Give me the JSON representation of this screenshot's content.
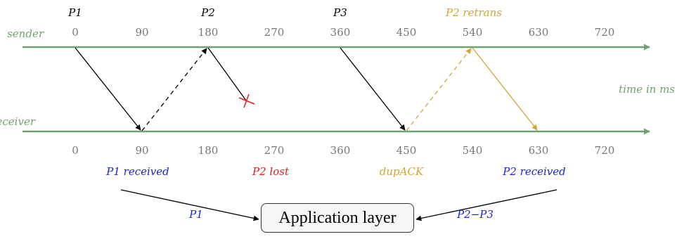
{
  "colors": {
    "timeline": "#6fa26c",
    "black": "#000000",
    "gold": "#d4a534",
    "red": "#e51c24",
    "blue": "#1a23d6"
  },
  "sender_label": "sender",
  "receiver_label": "receiver",
  "axis_unit_label": "time in ms",
  "ticks": [
    "0",
    "90",
    "180",
    "270",
    "360",
    "450",
    "540",
    "630",
    "720"
  ],
  "packet_labels": [
    {
      "text": "P1",
      "color": "black"
    },
    {
      "text": "P2",
      "color": "black"
    },
    {
      "text": "P3",
      "color": "black"
    },
    {
      "text": "P2 retrans",
      "color": "gold"
    }
  ],
  "events": [
    {
      "text": "P1 received",
      "color": "blue"
    },
    {
      "text": "P2 lost",
      "color": "red"
    },
    {
      "text": "dupACK",
      "color": "gold"
    },
    {
      "text": "P2 received",
      "color": "blue"
    }
  ],
  "delivery_labels": {
    "left": "P1",
    "right": "P2−P3"
  },
  "app_layer": "Application layer"
}
